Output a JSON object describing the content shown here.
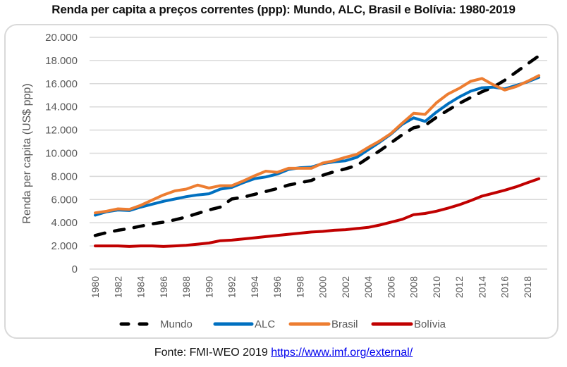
{
  "chart_data": {
    "type": "line",
    "title": "Renda per capita a preços correntes (ppp): Mundo, ALC, Brasil e Bolívia: 1980-2019",
    "xlabel": "",
    "ylabel": "Renda per capita (US$ ppp)",
    "ylim": [
      0,
      20000
    ],
    "yticks": [
      0,
      2000,
      4000,
      6000,
      8000,
      10000,
      12000,
      14000,
      16000,
      18000,
      20000
    ],
    "ytick_labels": [
      "0",
      "2.000",
      "4.000",
      "6.000",
      "8.000",
      "10.000",
      "12.000",
      "14.000",
      "16.000",
      "18.000",
      "20.000"
    ],
    "xtick_labels": [
      "1980",
      "1982",
      "1984",
      "1986",
      "1988",
      "1990",
      "1992",
      "1994",
      "1996",
      "1998",
      "2000",
      "2002",
      "2004",
      "2006",
      "2008",
      "2010",
      "2012",
      "2014",
      "2016",
      "2018"
    ],
    "grid": true,
    "legend_position": "bottom",
    "x": [
      1980,
      1981,
      1982,
      1983,
      1984,
      1985,
      1986,
      1987,
      1988,
      1989,
      1990,
      1991,
      1992,
      1993,
      1994,
      1995,
      1996,
      1997,
      1998,
      1999,
      2000,
      2001,
      2002,
      2003,
      2004,
      2005,
      2006,
      2007,
      2008,
      2009,
      2010,
      2011,
      2012,
      2013,
      2014,
      2015,
      2016,
      2017,
      2018,
      2019
    ],
    "series": [
      {
        "name": "Mundo",
        "color": "#000000",
        "dash": true,
        "values": [
          2900,
          3150,
          3350,
          3500,
          3700,
          3900,
          4050,
          4250,
          4500,
          4800,
          5100,
          5350,
          6050,
          6200,
          6450,
          6700,
          6950,
          7250,
          7450,
          7650,
          8100,
          8400,
          8650,
          8950,
          9600,
          10200,
          10900,
          11600,
          12200,
          12400,
          13100,
          13700,
          14300,
          14800,
          15300,
          15700,
          16300,
          17000,
          17700,
          18400
        ]
      },
      {
        "name": "ALC",
        "color": "#0070c0",
        "dash": false,
        "values": [
          4650,
          4950,
          5100,
          5050,
          5350,
          5600,
          5850,
          6050,
          6250,
          6400,
          6500,
          6900,
          7050,
          7450,
          7800,
          7950,
          8200,
          8600,
          8750,
          8800,
          9100,
          9250,
          9350,
          9650,
          10300,
          10950,
          11650,
          12500,
          13050,
          12750,
          13550,
          14250,
          14850,
          15350,
          15650,
          15700,
          15550,
          15850,
          16150,
          16550
        ]
      },
      {
        "name": "Brasil",
        "color": "#ed7d31",
        "dash": false,
        "values": [
          4850,
          5000,
          5200,
          5150,
          5500,
          5950,
          6400,
          6750,
          6900,
          7250,
          7000,
          7200,
          7200,
          7600,
          8050,
          8450,
          8350,
          8700,
          8700,
          8700,
          9150,
          9350,
          9650,
          9900,
          10500,
          11050,
          11700,
          12600,
          13450,
          13350,
          14350,
          15100,
          15600,
          16200,
          16450,
          15900,
          15450,
          15750,
          16200,
          16700
        ]
      },
      {
        "name": "Bolívia",
        "color": "#c00000",
        "dash": false,
        "values": [
          2000,
          2000,
          2000,
          1950,
          2000,
          2000,
          1950,
          2000,
          2050,
          2150,
          2250,
          2450,
          2500,
          2600,
          2700,
          2800,
          2900,
          3000,
          3100,
          3200,
          3250,
          3350,
          3400,
          3500,
          3600,
          3800,
          4050,
          4300,
          4700,
          4800,
          5000,
          5250,
          5550,
          5900,
          6300,
          6550,
          6800,
          7100,
          7450,
          7800
        ]
      }
    ]
  },
  "source": {
    "prefix": "Fonte: FMI-WEO 2019 ",
    "link_text": "https://www.imf.org/external/"
  }
}
